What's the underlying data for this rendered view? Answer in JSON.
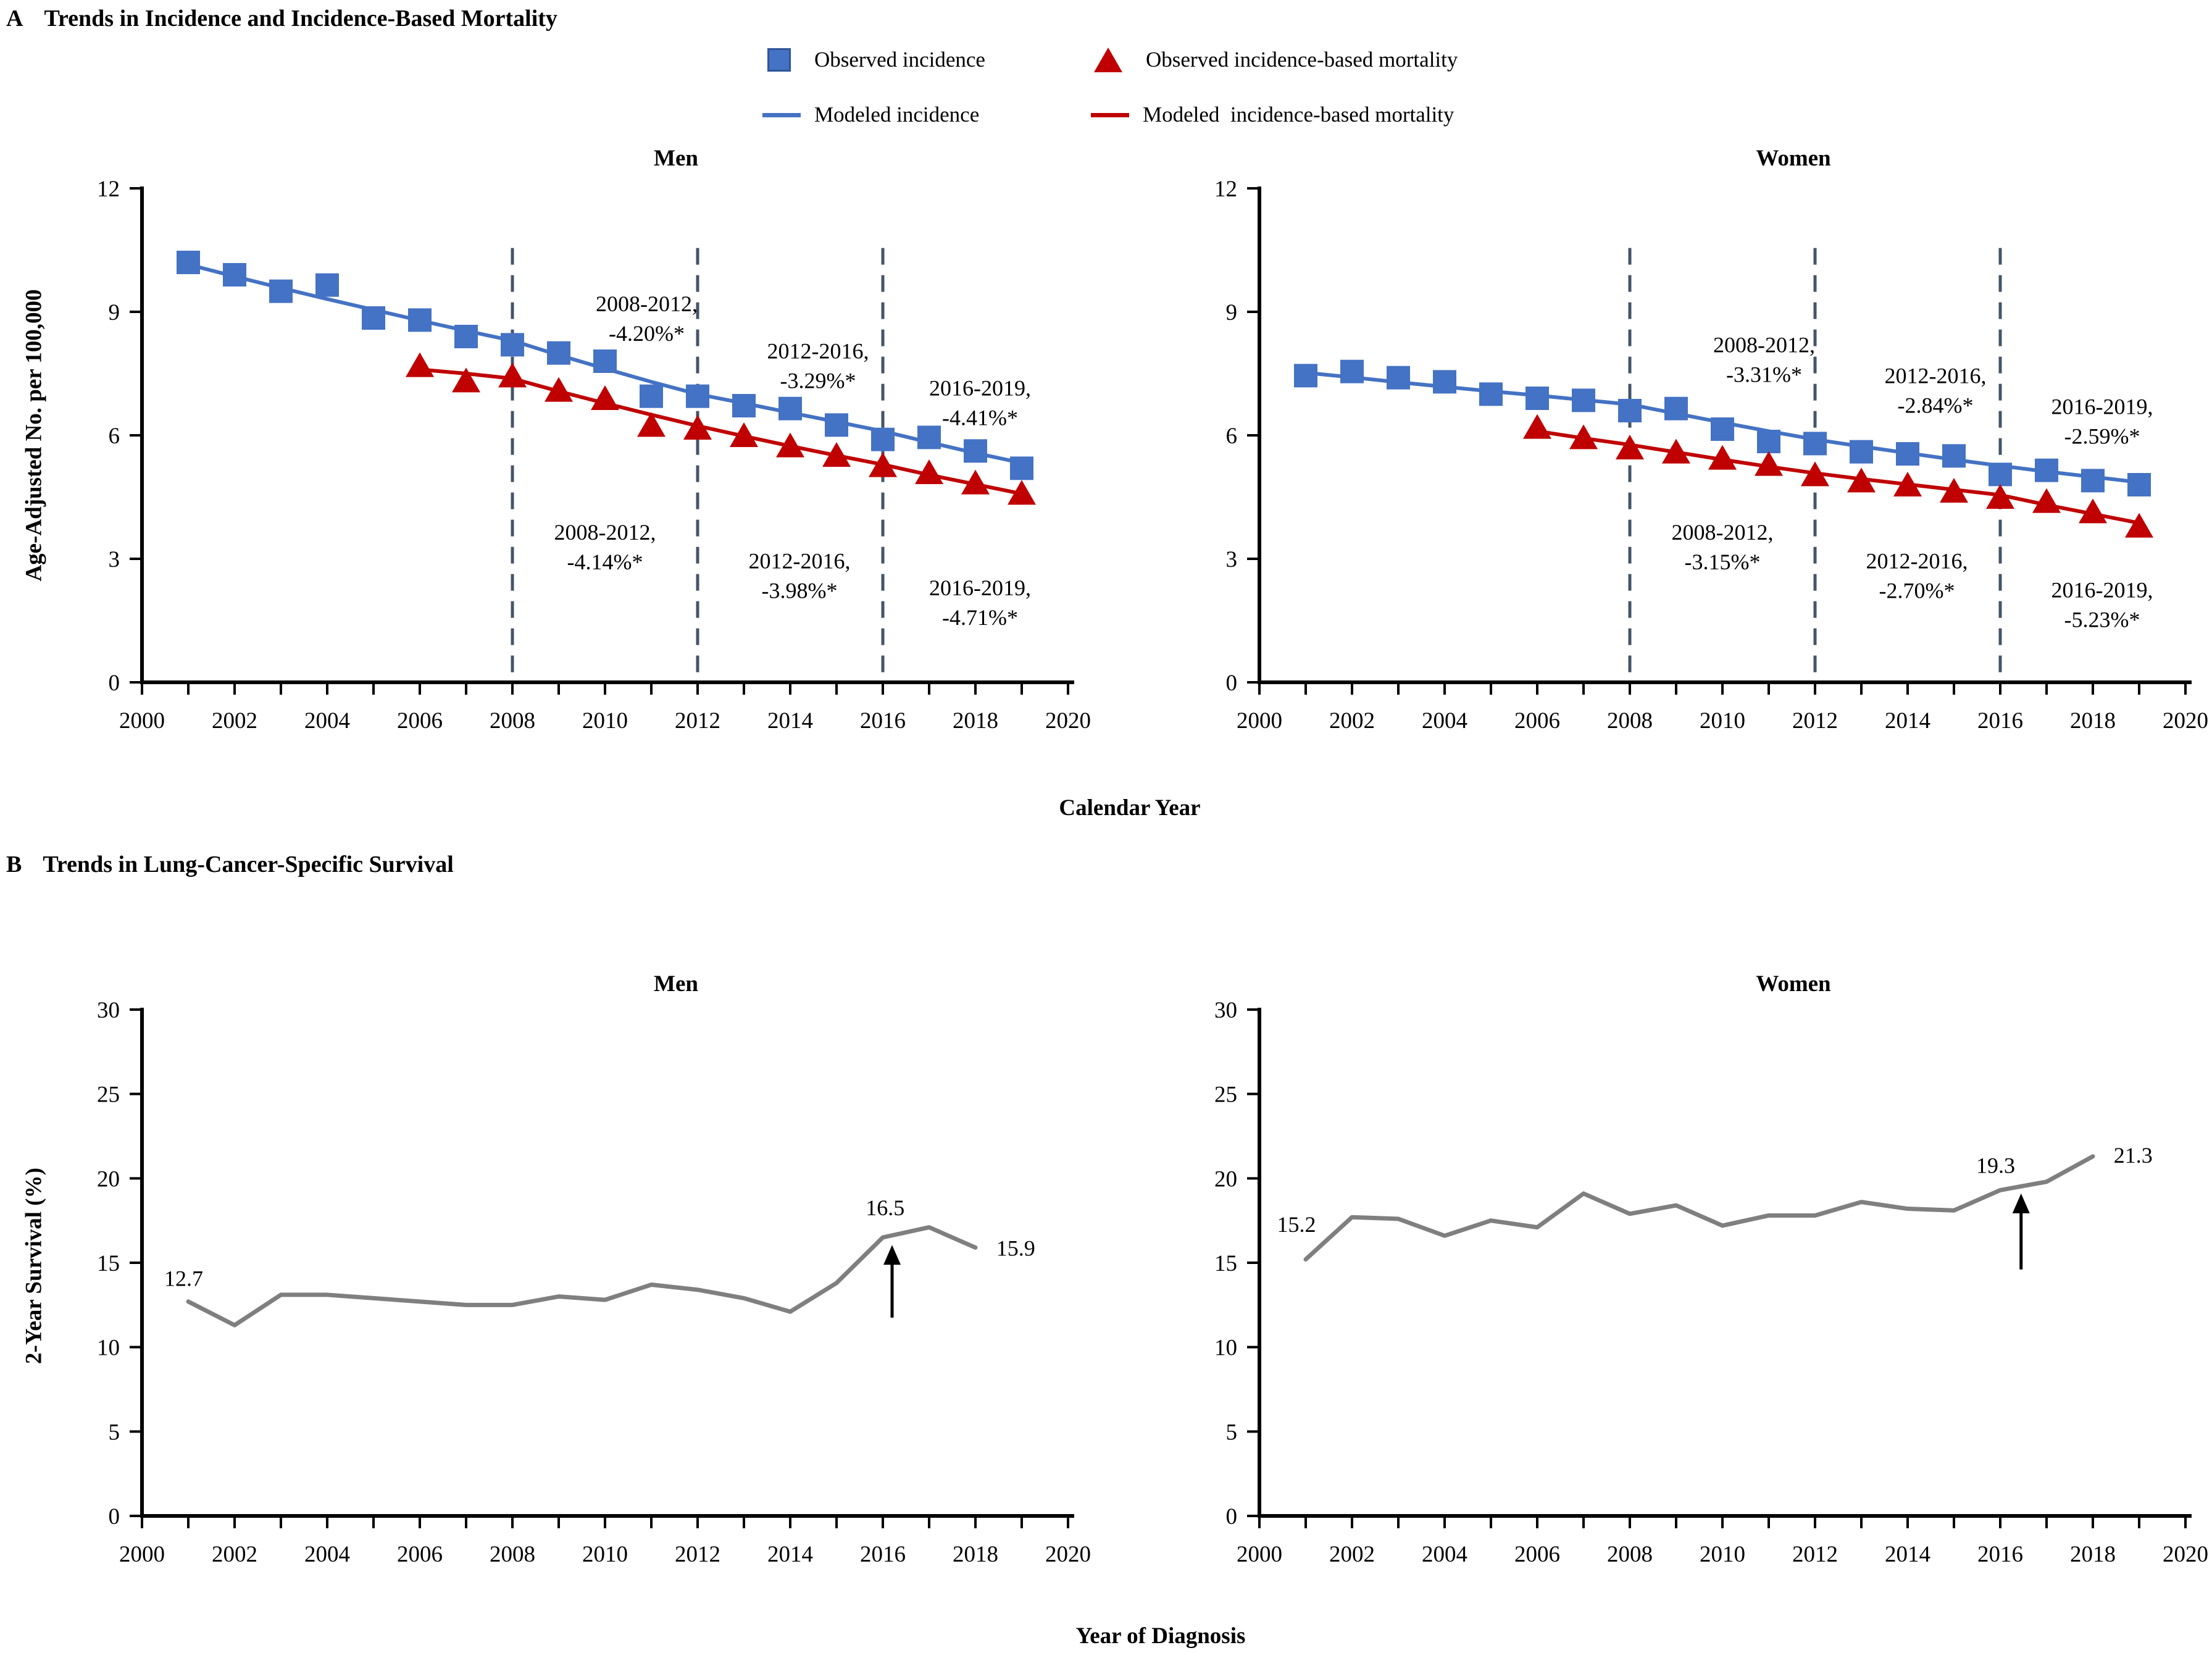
{
  "colors": {
    "incidence_blue": "#4472C4",
    "incidence_blue_border": "#2F5597",
    "mortality_red": "#C00000",
    "survival_gray": "#7F7F7F",
    "reference_line": "#44546A",
    "text": "#000000"
  },
  "panel_a": {
    "label": "A",
    "title": "Trends in Incidence and Incidence-Based Mortality",
    "x_axis_label": "Calendar Year",
    "y_axis_label": "Age-Adjusted No. per 100,000",
    "legend": [
      {
        "marker": "square",
        "color": "#4472C4",
        "label": "Observed incidence"
      },
      {
        "marker": "triangle",
        "color": "#C00000",
        "label": "Observed incidence-based mortality"
      },
      {
        "marker": "line",
        "color": "#4472C4",
        "label": "Modeled incidence"
      },
      {
        "marker": "line",
        "color": "#C00000",
        "label": "Modeled  incidence-based mortality"
      }
    ]
  },
  "panel_b": {
    "label": "B",
    "title": "Trends in Lung-Cancer-Specific Survival",
    "x_axis_label": "Year of Diagnosis",
    "y_axis_label": "2-Year Survival (%)"
  },
  "chart_data": [
    {
      "panel": "A",
      "title": "Men",
      "type": "line",
      "x": {
        "min": 2000,
        "max": 2020,
        "tick_step": 1,
        "label_step": 2
      },
      "y": {
        "min": 0,
        "max": 12,
        "ticks": [
          0,
          3,
          6,
          9,
          12
        ]
      },
      "reference_lines": [
        2008,
        2012,
        2016
      ],
      "ref_line_top_value": 10.55,
      "series": [
        {
          "name": "Modeled incidence",
          "line": true,
          "color": "#4472C4",
          "width": 6,
          "start_year": 2001,
          "values": [
            10.15,
            9.86,
            9.58,
            9.31,
            9.05,
            8.79,
            8.54,
            8.3,
            7.95,
            7.62,
            7.3,
            7.0,
            6.78,
            6.55,
            6.33,
            6.1,
            5.83,
            5.57,
            5.33
          ]
        },
        {
          "name": "Modeled incidence-based mortality",
          "line": true,
          "color": "#C00000",
          "width": 6,
          "start_year": 2006,
          "values": [
            7.6,
            7.5,
            7.38,
            7.07,
            6.78,
            6.5,
            6.23,
            5.98,
            5.74,
            5.51,
            5.29,
            5.04,
            4.81,
            4.58
          ]
        },
        {
          "name": "Observed incidence",
          "marker": "square",
          "color": "#4472C4",
          "start_year": 2001,
          "values": [
            10.2,
            9.9,
            9.5,
            9.65,
            8.85,
            8.8,
            8.4,
            8.2,
            8.0,
            7.8,
            6.95,
            6.95,
            6.72,
            6.65,
            6.25,
            5.9,
            5.95,
            5.62,
            5.2
          ]
        },
        {
          "name": "Observed incidence-based mortality",
          "marker": "triangle",
          "color": "#C00000",
          "start_year": 2006,
          "values": [
            7.7,
            7.33,
            7.45,
            7.1,
            6.9,
            6.25,
            6.18,
            6.0,
            5.75,
            5.52,
            5.27,
            5.1,
            4.85,
            4.6
          ]
        }
      ],
      "annotations": [
        {
          "lines": [
            "2008-2012,",
            "-4.20%*"
          ],
          "year": 2010.9,
          "value": 8.85
        },
        {
          "lines": [
            "2012-2016,",
            "-3.29%*"
          ],
          "year": 2014.6,
          "value": 7.7
        },
        {
          "lines": [
            "2016-2019,",
            "-4.41%*"
          ],
          "year": 2018.1,
          "value": 6.8
        },
        {
          "lines": [
            "2008-2012,",
            "-4.14%*"
          ],
          "year": 2010.0,
          "value": 3.3
        },
        {
          "lines": [
            "2012-2016,",
            "-3.98%*"
          ],
          "year": 2014.2,
          "value": 2.6
        },
        {
          "lines": [
            "2016-2019,",
            "-4.71%*"
          ],
          "year": 2018.1,
          "value": 1.95
        }
      ]
    },
    {
      "panel": "A",
      "title": "Women",
      "type": "line",
      "x": {
        "min": 2000,
        "max": 2020,
        "tick_step": 1,
        "label_step": 2
      },
      "y": {
        "min": 0,
        "max": 12,
        "ticks": [
          0,
          3,
          6,
          9,
          12
        ]
      },
      "reference_lines": [
        2008,
        2012,
        2016
      ],
      "ref_line_top_value": 10.55,
      "series": [
        {
          "name": "Modeled incidence",
          "line": true,
          "color": "#4472C4",
          "width": 6,
          "start_year": 2001,
          "values": [
            7.52,
            7.41,
            7.29,
            7.18,
            7.07,
            6.97,
            6.86,
            6.75,
            6.53,
            6.31,
            6.1,
            5.9,
            5.73,
            5.57,
            5.41,
            5.26,
            5.12,
            4.99,
            4.86
          ]
        },
        {
          "name": "Modeled incidence-based mortality",
          "line": true,
          "color": "#C00000",
          "width": 6,
          "start_year": 2006,
          "values": [
            6.1,
            5.93,
            5.77,
            5.59,
            5.41,
            5.24,
            5.08,
            4.94,
            4.81,
            4.68,
            4.55,
            4.31,
            4.09,
            3.87
          ]
        },
        {
          "name": "Observed incidence",
          "marker": "square",
          "color": "#4472C4",
          "start_year": 2001,
          "values": [
            7.45,
            7.55,
            7.4,
            7.3,
            7.0,
            6.9,
            6.85,
            6.6,
            6.65,
            6.15,
            5.85,
            5.8,
            5.6,
            5.55,
            5.5,
            5.05,
            5.15,
            4.9,
            4.8
          ]
        },
        {
          "name": "Observed incidence-based mortality",
          "marker": "triangle",
          "color": "#C00000",
          "start_year": 2006,
          "values": [
            6.2,
            5.95,
            5.7,
            5.6,
            5.45,
            5.3,
            5.05,
            4.9,
            4.8,
            4.65,
            4.5,
            4.4,
            4.15,
            3.8
          ]
        }
      ],
      "annotations": [
        {
          "lines": [
            "2008-2012,",
            "-3.31%*"
          ],
          "year": 2010.9,
          "value": 7.85
        },
        {
          "lines": [
            "2012-2016,",
            "-2.84%*"
          ],
          "year": 2014.6,
          "value": 7.1
        },
        {
          "lines": [
            "2016-2019,",
            "-2.59%*"
          ],
          "year": 2018.2,
          "value": 6.35
        },
        {
          "lines": [
            "2008-2012,",
            "-3.15%*"
          ],
          "year": 2010.0,
          "value": 3.3
        },
        {
          "lines": [
            "2012-2016,",
            "-2.70%*"
          ],
          "year": 2014.2,
          "value": 2.6
        },
        {
          "lines": [
            "2016-2019,",
            "-5.23%*"
          ],
          "year": 2018.2,
          "value": 1.9
        }
      ]
    },
    {
      "panel": "B",
      "title": "Men",
      "type": "line",
      "x": {
        "min": 2000,
        "max": 2020,
        "tick_step": 1,
        "label_step": 2
      },
      "y": {
        "min": 0,
        "max": 30,
        "ticks": [
          0,
          5,
          10,
          15,
          20,
          25,
          30
        ]
      },
      "series": [
        {
          "name": "2-year survival",
          "line": true,
          "color": "#7F7F7F",
          "width": 7,
          "start_year": 2001,
          "values": [
            12.7,
            11.3,
            13.1,
            13.1,
            12.9,
            12.7,
            12.5,
            12.5,
            13.0,
            12.8,
            13.7,
            13.4,
            12.9,
            12.1,
            13.8,
            16.5,
            17.1,
            15.9
          ]
        }
      ],
      "point_labels": [
        {
          "text": "12.7",
          "year": 2000.9,
          "value": 14.1,
          "anchor": "middle"
        },
        {
          "text": "16.5",
          "year": 2016.05,
          "value": 18.3,
          "anchor": "middle"
        },
        {
          "text": "15.9",
          "year": 2018.45,
          "value": 15.9,
          "anchor": "start"
        }
      ],
      "arrows": [
        {
          "year": 2016.2,
          "from_value": 11.75,
          "to_value": 16.05
        }
      ]
    },
    {
      "panel": "B",
      "title": "Women",
      "type": "line",
      "x": {
        "min": 2000,
        "max": 2020,
        "tick_step": 1,
        "label_step": 2
      },
      "y": {
        "min": 0,
        "max": 30,
        "ticks": [
          0,
          5,
          10,
          15,
          20,
          25,
          30
        ]
      },
      "series": [
        {
          "name": "2-year survival",
          "line": true,
          "color": "#7F7F7F",
          "width": 7,
          "start_year": 2001,
          "values": [
            15.2,
            17.7,
            17.6,
            16.6,
            17.5,
            17.1,
            19.1,
            17.9,
            18.4,
            17.2,
            17.8,
            17.8,
            18.6,
            18.2,
            18.1,
            19.3,
            19.8,
            21.3
          ]
        }
      ],
      "point_labels": [
        {
          "text": "15.2",
          "year": 2000.8,
          "value": 17.3,
          "anchor": "middle"
        },
        {
          "text": "19.3",
          "year": 2015.9,
          "value": 20.8,
          "anchor": "middle"
        },
        {
          "text": "21.3",
          "year": 2018.45,
          "value": 21.4,
          "anchor": "start"
        }
      ],
      "arrows": [
        {
          "year": 2016.45,
          "from_value": 14.6,
          "to_value": 19.1
        }
      ]
    }
  ]
}
